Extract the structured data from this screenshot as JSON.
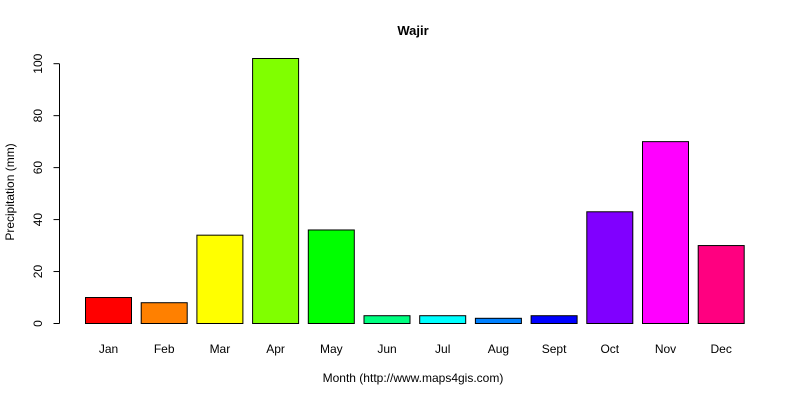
{
  "chart_data": {
    "type": "bar",
    "title": "Wajir",
    "xlabel": "Month (http://www.maps4gis.com)",
    "ylabel": "Precipitation (mm)",
    "categories": [
      "Jan",
      "Feb",
      "Mar",
      "Apr",
      "May",
      "Jun",
      "Jul",
      "Aug",
      "Sept",
      "Oct",
      "Nov",
      "Dec"
    ],
    "values": [
      10,
      8,
      34,
      102,
      36,
      3,
      3,
      2,
      3,
      43,
      70,
      30
    ],
    "colors": [
      "#FF0000",
      "#FF8000",
      "#FFFF00",
      "#80FF00",
      "#00FF00",
      "#00FF80",
      "#00FFFF",
      "#0080FF",
      "#0000FF",
      "#8000FF",
      "#FF00FF",
      "#FF0080"
    ],
    "ylim": [
      0,
      102
    ],
    "yticks": [
      0,
      20,
      40,
      60,
      80,
      100
    ],
    "grid": false,
    "legend": "none"
  }
}
